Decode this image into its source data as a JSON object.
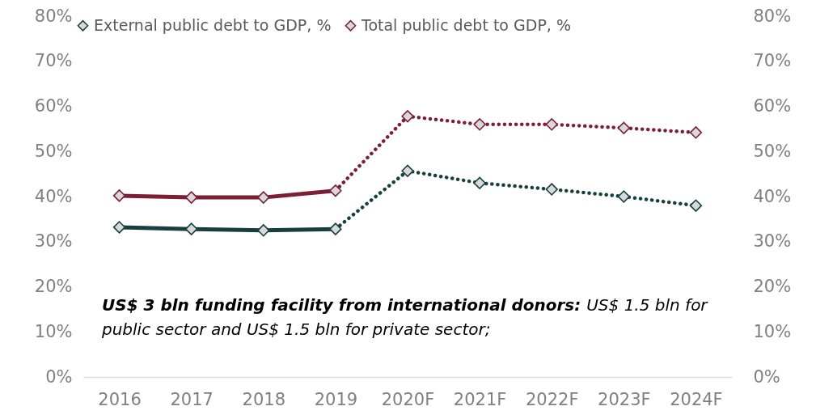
{
  "chart_data": {
    "type": "line",
    "categories": [
      "2016",
      "2017",
      "2018",
      "2019",
      "2020F",
      "2021F",
      "2022F",
      "2023F",
      "2024F"
    ],
    "series": [
      {
        "name": "External public debt to GDP, %",
        "color": "#173f3f",
        "line_style": "solid",
        "values": [
          33.2,
          32.8,
          32.5,
          32.8,
          null,
          null,
          null,
          null,
          null
        ]
      },
      {
        "color": "#173f3f",
        "line_style": "dotted",
        "values": [
          null,
          null,
          null,
          32.8,
          45.7,
          43.0,
          41.6,
          40.0,
          38.0
        ]
      },
      {
        "name": "Total public debt to GDP, %",
        "color": "#7b1f34",
        "line_style": "solid",
        "values": [
          40.2,
          39.8,
          39.8,
          41.3,
          null,
          null,
          null,
          null,
          null
        ]
      },
      {
        "color": "#7b1f34",
        "line_style": "dotted",
        "values": [
          null,
          null,
          null,
          41.3,
          57.8,
          56.0,
          56.0,
          55.2,
          54.2
        ]
      }
    ],
    "ylim": [
      0,
      80
    ],
    "yticks": [
      {
        "value": 0,
        "label": "0%"
      },
      {
        "value": 10,
        "label": "10%"
      },
      {
        "value": 20,
        "label": "20%"
      },
      {
        "value": 30,
        "label": "30%"
      },
      {
        "value": 40,
        "label": "40%"
      },
      {
        "value": 50,
        "label": "50%"
      },
      {
        "value": 60,
        "label": "60%"
      },
      {
        "value": 70,
        "label": "70%"
      },
      {
        "value": 80,
        "label": "80%"
      }
    ],
    "y2lim": [
      0,
      80
    ],
    "y2ticks": [
      {
        "value": 0,
        "label": "0%"
      },
      {
        "value": 10,
        "label": "10%"
      },
      {
        "value": 20,
        "label": "20%"
      },
      {
        "value": 30,
        "label": "30%"
      },
      {
        "value": 40,
        "label": "40%"
      },
      {
        "value": 50,
        "label": "50%"
      },
      {
        "value": 60,
        "label": "60%"
      },
      {
        "value": 70,
        "label": "70%"
      },
      {
        "value": 80,
        "label": "80%"
      }
    ],
    "annotations": [
      "US$ 3 bln funding facility from international donors:",
      "US$ 1.5 bln for public sector and US$ 1.5 bln for private sector;"
    ],
    "marker": "diamond",
    "legend": "top",
    "grid": false
  }
}
